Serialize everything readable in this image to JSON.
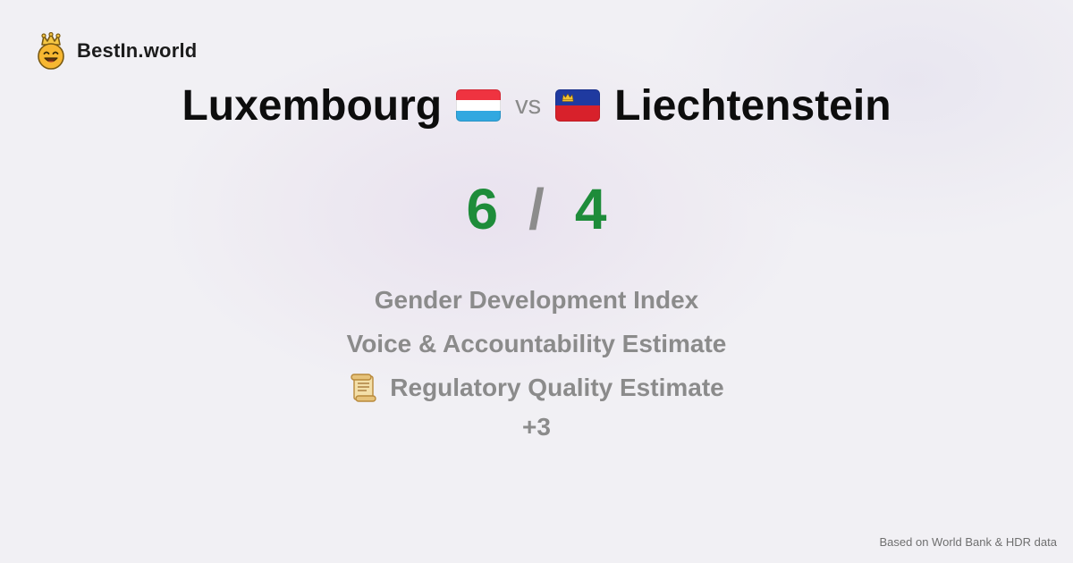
{
  "brand": {
    "name": "BestIn.world",
    "logo_icon": "crowned-smiley-icon"
  },
  "comparison": {
    "left": {
      "name": "Luxembourg",
      "flag_icon": "luxembourg-flag-icon",
      "score": "6"
    },
    "separator": "vs",
    "right": {
      "name": "Liechtenstein",
      "flag_icon": "liechtenstein-flag-icon",
      "score": "4"
    },
    "score_separator": "/"
  },
  "metrics": [
    {
      "label": "Gender Development Index"
    },
    {
      "label": "Voice & Accountability Estimate"
    },
    {
      "label": "Regulatory Quality Estimate",
      "icon": "scroll-icon"
    }
  ],
  "more_label": "+3",
  "source_note": "Based on World Bank & HDR data",
  "colors": {
    "score": "#1e8c3a",
    "muted": "#8b8b8b",
    "background": "#f1f0f4"
  }
}
